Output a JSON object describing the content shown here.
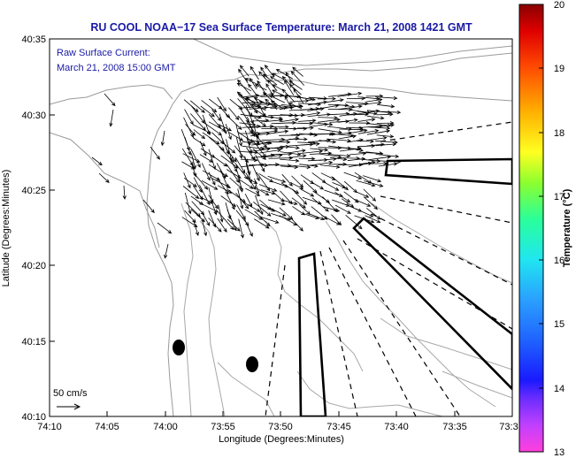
{
  "chart_data": {
    "type": "vector-field",
    "title": "RU COOL  NOAA−17  Sea Surface Temperature:  March 21, 2008 1421 GMT",
    "annotation": {
      "line1": "Raw Surface Current:",
      "line2": "March 21, 2008 15:00 GMT"
    },
    "xlabel": "Longitude (Degrees:Minutes)",
    "ylabel": "Latitude (Degrees:Minutes)",
    "x_tick_labels": [
      "74:10",
      "74:05",
      "74:00",
      "73:55",
      "73:50",
      "73:45",
      "73:40",
      "73:35",
      "73:3"
    ],
    "y_tick_labels": [
      "40:35",
      "40:30",
      "40:25",
      "40:20",
      "40:15",
      "40:10"
    ],
    "xlim_minutes_west": [
      70,
      30
    ],
    "ylim_minutes_north": [
      10,
      35
    ],
    "scale_arrow_label": "50 cm/s",
    "colorbar": {
      "label": "Temperature (°C)",
      "tick_labels": [
        "20",
        "19",
        "18",
        "17",
        "16",
        "15",
        "14",
        "13"
      ],
      "range": [
        13,
        20
      ]
    },
    "markers": [
      {
        "name": "buoy",
        "lon_min_west": 59.0,
        "lat_min_north": 14.6
      },
      {
        "name": "buoy",
        "lon_min_west": 52.4,
        "lat_min_north": 13.5
      }
    ]
  }
}
